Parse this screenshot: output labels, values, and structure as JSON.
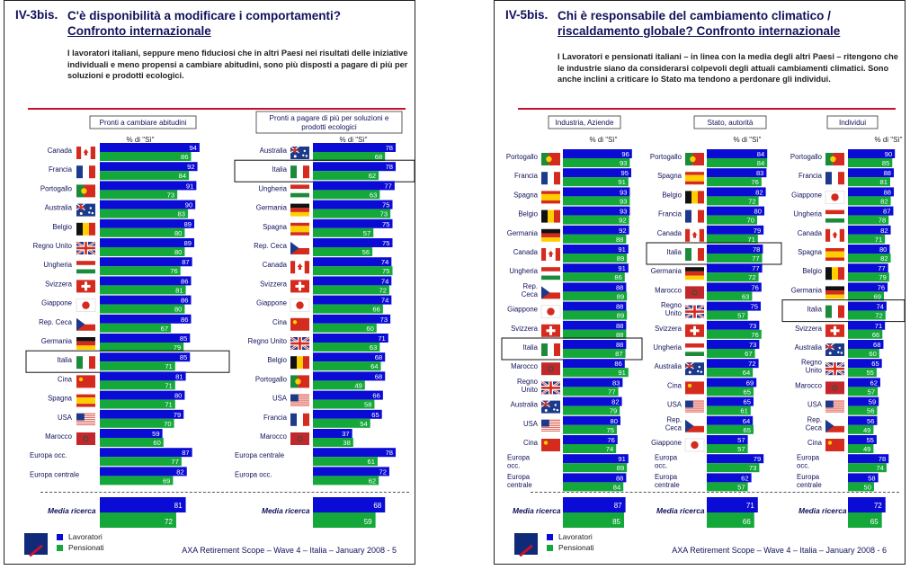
{
  "colors": {
    "lavoratori": "#0b0bd6",
    "pensionati": "#14a83a",
    "accent": "#c8102e",
    "title": "#11115c"
  },
  "legend": {
    "lavoratori": "Lavoratori",
    "pensionati": "Pensionati"
  },
  "panels": [
    {
      "num": "IV-3bis.",
      "title_line1": "C'è disponibilità a modificare i comportamenti?",
      "title_line2": "Confronto internazionale",
      "intro": "I lavoratori italiani, seppure meno fiduciosi che in altri Paesi nei risultati delle iniziative individuali e meno propensi a cambiare abitudini, sono più disposti a pagare di più per soluzioni e prodotti ecologici.",
      "footer": "AXA Retirement Scope – Wave 4 – Italia – January 2008 - 5"
    },
    {
      "num": "IV-5bis.",
      "title_line1": "Chi è responsabile del cambiamento climatico /",
      "title_line2": "riscaldamento globale? Confronto internazionale",
      "intro": "I Lavoratori e pensionati italiani – in linea con la media degli altri Paesi – ritengono che le industrie siano da considerarsi colpevoli degli attuali cambiamenti climatici. Sono anche inclini a criticare lo Stato ma tendono a perdonare gli individui.",
      "footer": "AXA Retirement Scope – Wave 4 – Italia – January 2008 - 6"
    }
  ],
  "chart_data": [
    {
      "type": "bar",
      "title": "Pronti a cambiare abitudini",
      "subtitle": "% di \"Sì\"",
      "series_names": [
        "Lavoratori",
        "Pensionati"
      ],
      "highlight": "Italia",
      "rows": [
        {
          "label": "Canada",
          "flag": "ca",
          "v": [
            94,
            86
          ]
        },
        {
          "label": "Francia",
          "flag": "fr",
          "v": [
            92,
            84
          ]
        },
        {
          "label": "Portogallo",
          "flag": "pt",
          "v": [
            91,
            73
          ]
        },
        {
          "label": "Australia",
          "flag": "au",
          "v": [
            90,
            83
          ]
        },
        {
          "label": "Belgio",
          "flag": "be",
          "v": [
            89,
            80
          ]
        },
        {
          "label": "Regno Unito",
          "flag": "uk",
          "v": [
            89,
            80
          ]
        },
        {
          "label": "Ungheria",
          "flag": "hu",
          "v": [
            87,
            76
          ]
        },
        {
          "label": "Svizzera",
          "flag": "ch",
          "v": [
            86,
            81
          ]
        },
        {
          "label": "Giappone",
          "flag": "jp",
          "v": [
            86,
            80
          ]
        },
        {
          "label": "Rep. Ceca",
          "flag": "cz",
          "v": [
            86,
            67
          ]
        },
        {
          "label": "Germania",
          "flag": "de",
          "v": [
            85,
            79
          ]
        },
        {
          "label": "Italia",
          "flag": "it",
          "v": [
            85,
            71
          ]
        },
        {
          "label": "Cina",
          "flag": "cn",
          "v": [
            81,
            71
          ]
        },
        {
          "label": "Spagna",
          "flag": "es",
          "v": [
            80,
            71
          ]
        },
        {
          "label": "USA",
          "flag": "us",
          "v": [
            79,
            70
          ]
        },
        {
          "label": "Marocco",
          "flag": "ma",
          "v": [
            59,
            60
          ]
        },
        {
          "label": "Europa occ.",
          "flag": "",
          "v": [
            87,
            77
          ]
        },
        {
          "label": "Europa centrale",
          "flag": "",
          "v": [
            82,
            69
          ]
        }
      ],
      "media": {
        "label": "Media ricerca",
        "v": [
          81,
          72
        ]
      }
    },
    {
      "type": "bar",
      "title": "Pronti a pagare di più per soluzioni e prodotti ecologici",
      "subtitle": "% di \"Sì\"",
      "series_names": [
        "Lavoratori",
        "Pensionati"
      ],
      "highlight": "Italia",
      "rows": [
        {
          "label": "Australia",
          "flag": "au",
          "v": [
            78,
            68
          ]
        },
        {
          "label": "Italia",
          "flag": "it",
          "v": [
            78,
            62
          ]
        },
        {
          "label": "Ungheria",
          "flag": "hu",
          "v": [
            77,
            63
          ]
        },
        {
          "label": "Germania",
          "flag": "de",
          "v": [
            75,
            73
          ]
        },
        {
          "label": "Spagna",
          "flag": "es",
          "v": [
            75,
            57
          ]
        },
        {
          "label": "Rep. Ceca",
          "flag": "cz",
          "v": [
            75,
            56
          ]
        },
        {
          "label": "Canada",
          "flag": "ca",
          "v": [
            74,
            75
          ]
        },
        {
          "label": "Svizzera",
          "flag": "ch",
          "v": [
            74,
            72
          ]
        },
        {
          "label": "Giappone",
          "flag": "jp",
          "v": [
            74,
            66
          ]
        },
        {
          "label": "Cina",
          "flag": "cn",
          "v": [
            73,
            60
          ]
        },
        {
          "label": "Regno Unito",
          "flag": "uk",
          "v": [
            71,
            63
          ]
        },
        {
          "label": "Belgio",
          "flag": "be",
          "v": [
            68,
            64
          ]
        },
        {
          "label": "Portogallo",
          "flag": "pt",
          "v": [
            68,
            49
          ]
        },
        {
          "label": "USA",
          "flag": "us",
          "v": [
            66,
            58
          ]
        },
        {
          "label": "Francia",
          "flag": "fr",
          "v": [
            65,
            54
          ]
        },
        {
          "label": "Marocco",
          "flag": "ma",
          "v": [
            37,
            38
          ]
        },
        {
          "label": "Europa centrale",
          "flag": "",
          "v": [
            78,
            61
          ]
        },
        {
          "label": "Europa occ.",
          "flag": "",
          "v": [
            72,
            62
          ]
        }
      ],
      "media": {
        "label": "Media ricerca",
        "v": [
          68,
          59
        ]
      }
    },
    {
      "type": "bar",
      "title": "Industria, Aziende",
      "subtitle": "% di \"Sì\"",
      "series_names": [
        "Lavoratori",
        "Pensionati"
      ],
      "highlight": "Italia",
      "rows": [
        {
          "label": "Portogallo",
          "flag": "pt",
          "v": [
            96,
            93
          ]
        },
        {
          "label": "Francia",
          "flag": "fr",
          "v": [
            95,
            91
          ]
        },
        {
          "label": "Spagna",
          "flag": "es",
          "v": [
            93,
            93
          ]
        },
        {
          "label": "Belgio",
          "flag": "be",
          "v": [
            93,
            92
          ]
        },
        {
          "label": "Germania",
          "flag": "de",
          "v": [
            92,
            88
          ]
        },
        {
          "label": "Canada",
          "flag": "ca",
          "v": [
            91,
            89
          ]
        },
        {
          "label": "Ungheria",
          "flag": "hu",
          "v": [
            91,
            86
          ]
        },
        {
          "label": "Rep. Ceca",
          "flag": "cz",
          "v": [
            88,
            89
          ]
        },
        {
          "label": "Giappone",
          "flag": "jp",
          "v": [
            88,
            89
          ]
        },
        {
          "label": "Svizzera",
          "flag": "ch",
          "v": [
            88,
            88
          ]
        },
        {
          "label": "Italia",
          "flag": "it",
          "v": [
            88,
            87
          ]
        },
        {
          "label": "Marocco",
          "flag": "ma",
          "v": [
            86,
            91
          ]
        },
        {
          "label": "Regno Unito",
          "flag": "uk",
          "v": [
            83,
            77
          ]
        },
        {
          "label": "Australia",
          "flag": "au",
          "v": [
            82,
            79
          ]
        },
        {
          "label": "USA",
          "flag": "us",
          "v": [
            80,
            75
          ]
        },
        {
          "label": "Cina",
          "flag": "cn",
          "v": [
            76,
            74
          ]
        },
        {
          "label": "Europa occ.",
          "flag": "",
          "v": [
            91,
            89
          ]
        },
        {
          "label": "Europa centrale",
          "flag": "",
          "v": [
            88,
            84
          ]
        }
      ],
      "media": {
        "label": "Media ricerca",
        "v": [
          87,
          85
        ]
      }
    },
    {
      "type": "bar",
      "title": "Stato, autorità",
      "subtitle": "% di \"Sì\"",
      "series_names": [
        "Lavoratori",
        "Pensionati"
      ],
      "highlight": "Italia",
      "rows": [
        {
          "label": "Portogallo",
          "flag": "pt",
          "v": [
            84,
            84
          ]
        },
        {
          "label": "Spagna",
          "flag": "es",
          "v": [
            83,
            76
          ]
        },
        {
          "label": "Belgio",
          "flag": "be",
          "v": [
            82,
            72
          ]
        },
        {
          "label": "Francia",
          "flag": "fr",
          "v": [
            80,
            70
          ]
        },
        {
          "label": "Canada",
          "flag": "ca",
          "v": [
            79,
            71
          ]
        },
        {
          "label": "Italia",
          "flag": "it",
          "v": [
            78,
            77
          ]
        },
        {
          "label": "Germania",
          "flag": "de",
          "v": [
            77,
            72
          ]
        },
        {
          "label": "Marocco",
          "flag": "ma",
          "v": [
            76,
            63
          ]
        },
        {
          "label": "Regno Unito",
          "flag": "uk",
          "v": [
            75,
            57
          ]
        },
        {
          "label": "Svizzera",
          "flag": "ch",
          "v": [
            73,
            76
          ]
        },
        {
          "label": "Ungheria",
          "flag": "hu",
          "v": [
            73,
            67
          ]
        },
        {
          "label": "Australia",
          "flag": "au",
          "v": [
            72,
            64
          ]
        },
        {
          "label": "Cina",
          "flag": "cn",
          "v": [
            69,
            65
          ]
        },
        {
          "label": "USA",
          "flag": "us",
          "v": [
            65,
            61
          ]
        },
        {
          "label": "Rep. Ceca",
          "flag": "cz",
          "v": [
            64,
            65
          ]
        },
        {
          "label": "Giappone",
          "flag": "jp",
          "v": [
            57,
            57
          ]
        },
        {
          "label": "Europa occ.",
          "flag": "",
          "v": [
            79,
            73
          ]
        },
        {
          "label": "Europa centrale",
          "flag": "",
          "v": [
            62,
            57
          ]
        }
      ],
      "media": {
        "label": "Media ricerca",
        "v": [
          71,
          66
        ]
      }
    },
    {
      "type": "bar",
      "title": "Individui",
      "subtitle": "% di \"Sì\"",
      "series_names": [
        "Lavoratori",
        "Pensionati"
      ],
      "highlight": "Italia",
      "rows": [
        {
          "label": "Portogallo",
          "flag": "pt",
          "v": [
            90,
            85
          ]
        },
        {
          "label": "Francia",
          "flag": "fr",
          "v": [
            88,
            81
          ]
        },
        {
          "label": "Giappone",
          "flag": "jp",
          "v": [
            88,
            82
          ]
        },
        {
          "label": "Ungheria",
          "flag": "hu",
          "v": [
            87,
            78
          ]
        },
        {
          "label": "Canada",
          "flag": "ca",
          "v": [
            82,
            71
          ]
        },
        {
          "label": "Spagna",
          "flag": "es",
          "v": [
            80,
            82
          ]
        },
        {
          "label": "Belgio",
          "flag": "be",
          "v": [
            77,
            79
          ]
        },
        {
          "label": "Germania",
          "flag": "de",
          "v": [
            76,
            69
          ]
        },
        {
          "label": "Italia",
          "flag": "it",
          "v": [
            74,
            72
          ]
        },
        {
          "label": "Svizzera",
          "flag": "ch",
          "v": [
            71,
            66
          ]
        },
        {
          "label": "Australia",
          "flag": "au",
          "v": [
            68,
            60
          ]
        },
        {
          "label": "Regno Unito",
          "flag": "uk",
          "v": [
            65,
            55
          ]
        },
        {
          "label": "Marocco",
          "flag": "ma",
          "v": [
            62,
            57
          ]
        },
        {
          "label": "USA",
          "flag": "us",
          "v": [
            59,
            56
          ]
        },
        {
          "label": "Rep. Ceca",
          "flag": "cz",
          "v": [
            56,
            49
          ]
        },
        {
          "label": "Cina",
          "flag": "cn",
          "v": [
            55,
            49
          ]
        },
        {
          "label": "Europa occ.",
          "flag": "",
          "v": [
            78,
            74
          ]
        },
        {
          "label": "Europa centrale",
          "flag": "",
          "v": [
            58,
            50
          ]
        }
      ],
      "media": {
        "label": "Media ricerca",
        "v": [
          72,
          65
        ]
      }
    }
  ]
}
